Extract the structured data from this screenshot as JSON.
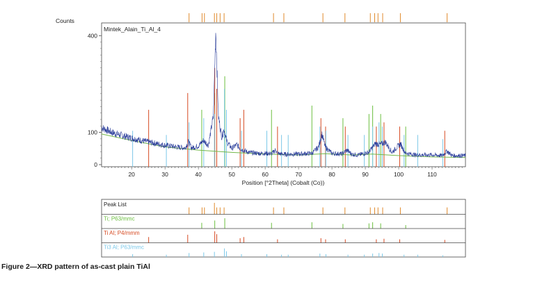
{
  "figure": {
    "caption": "Figure 2—XRD pattern of as-cast plain TiAl"
  },
  "chart_data": {
    "type": "line",
    "sample_label": "Mintek_Alain_Ti_Al_4",
    "ylabel": "Counts",
    "xlabel": "Position [°2Theta] (Cobalt (Co))",
    "xlim": [
      11,
      120
    ],
    "ylim": [
      0,
      420
    ],
    "x_ticks": [
      20,
      30,
      40,
      50,
      60,
      70,
      80,
      90,
      100,
      110
    ],
    "y_ticks": [
      0,
      100,
      400
    ],
    "grid": false,
    "colors": {
      "pattern": "#2a3d9a",
      "background_curve": "#74b84a",
      "peak_list": "#e08a2c",
      "ti": "#6bbf3f",
      "tial": "#d64a22",
      "ti3al": "#7cc8e8"
    },
    "pattern_profile": {
      "x": [
        11,
        14,
        18,
        22,
        26,
        30,
        34,
        36,
        37,
        38,
        40,
        41.5,
        43,
        44.5,
        45.2,
        46,
        47,
        47.7,
        48.5,
        50,
        51.5,
        52.5,
        53.5,
        55,
        58,
        60,
        62,
        63,
        64,
        66,
        70,
        74,
        76,
        77,
        78,
        80,
        83,
        84.5,
        86,
        88,
        91,
        93,
        94.5,
        96,
        98,
        100.5,
        102,
        105,
        110,
        113,
        114.5,
        116,
        120
      ],
      "y": [
        115,
        100,
        88,
        77,
        68,
        60,
        54,
        52,
        70,
        52,
        58,
        75,
        60,
        150,
        420,
        150,
        85,
        110,
        72,
        50,
        62,
        50,
        45,
        38,
        35,
        35,
        34,
        45,
        34,
        32,
        33,
        35,
        55,
        95,
        55,
        35,
        33,
        45,
        32,
        30,
        38,
        65,
        62,
        70,
        38,
        65,
        36,
        30,
        30,
        28,
        42,
        28,
        28
      ]
    },
    "series": [
      {
        "name": "Peak List",
        "peaks": [
          [
            37.2,
            0.6
          ],
          [
            41.1,
            0.6
          ],
          [
            41.8,
            0.6
          ],
          [
            44.8,
            1.0
          ],
          [
            45.5,
            0.6
          ],
          [
            46.5,
            0.6
          ],
          [
            47.7,
            0.6
          ],
          [
            62.5,
            0.6
          ],
          [
            65.6,
            0.6
          ],
          [
            77.3,
            0.6
          ],
          [
            83.9,
            0.6
          ],
          [
            91.5,
            0.6
          ],
          [
            92.8,
            0.6
          ],
          [
            93.8,
            0.6
          ],
          [
            95.2,
            0.6
          ],
          [
            100.5,
            0.6
          ],
          [
            114.5,
            0.6
          ]
        ]
      },
      {
        "name": "Ti; P63/mmc",
        "peaks": [
          [
            41.0,
            0.5
          ],
          [
            44.9,
            0.7
          ],
          [
            47.9,
            0.9
          ],
          [
            61.9,
            0.5
          ],
          [
            74.0,
            0.55
          ],
          [
            83.3,
            0.4
          ],
          [
            91.1,
            0.45
          ],
          [
            92.2,
            0.55
          ],
          [
            94.6,
            0.45
          ],
          [
            102.1,
            0.3
          ]
        ]
      },
      {
        "name": "Ti Al; P4/mmm",
        "peaks": [
          [
            25.1,
            0.5
          ],
          [
            36.8,
            0.7
          ],
          [
            44.9,
            1.0
          ],
          [
            45.5,
            0.75
          ],
          [
            52.5,
            0.4
          ],
          [
            53.6,
            0.5
          ],
          [
            63.7,
            0.3
          ],
          [
            76.7,
            0.4
          ],
          [
            78.1,
            0.3
          ],
          [
            84.0,
            0.3
          ],
          [
            93.3,
            0.3
          ],
          [
            95.6,
            0.35
          ],
          [
            100.3,
            0.3
          ],
          [
            113.8,
            0.25
          ]
        ]
      },
      {
        "name": "Ti3 Al; P63/mmc",
        "peaks": [
          [
            20.3,
            0.25
          ],
          [
            30.4,
            0.2
          ],
          [
            37.2,
            0.35
          ],
          [
            41.6,
            0.4
          ],
          [
            44.8,
            0.45
          ],
          [
            47.8,
            0.75
          ],
          [
            48.4,
            0.5
          ],
          [
            52.9,
            0.25
          ],
          [
            60.5,
            0.25
          ],
          [
            64.9,
            0.2
          ],
          [
            66.9,
            0.2
          ],
          [
            76.4,
            0.3
          ],
          [
            78.2,
            0.25
          ],
          [
            84.8,
            0.2
          ],
          [
            89.7,
            0.2
          ],
          [
            92.2,
            0.3
          ],
          [
            94.1,
            0.35
          ],
          [
            95.1,
            0.3
          ],
          [
            101.6,
            0.2
          ],
          [
            105.7,
            0.2
          ],
          [
            113.2,
            0.15
          ]
        ]
      }
    ]
  }
}
